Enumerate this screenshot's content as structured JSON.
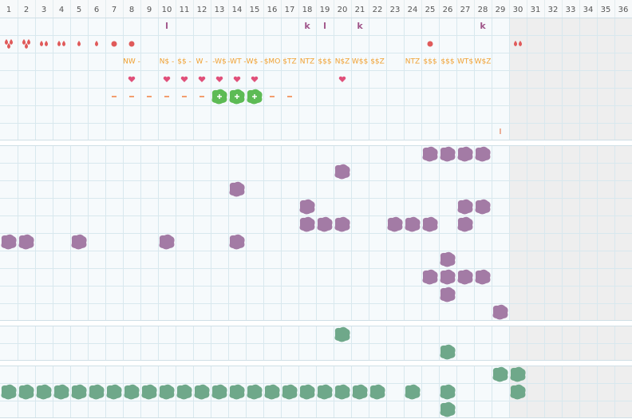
{
  "grid": {
    "columns": [
      1,
      2,
      3,
      4,
      5,
      6,
      7,
      8,
      9,
      10,
      11,
      12,
      13,
      14,
      15,
      16,
      17,
      18,
      19,
      20,
      21,
      22,
      23,
      24,
      25,
      26,
      27,
      28,
      29,
      30,
      31,
      32,
      33,
      34,
      35,
      36
    ],
    "letters": [
      null,
      null,
      null,
      null,
      null,
      null,
      null,
      null,
      null,
      "l",
      null,
      null,
      null,
      null,
      null,
      null,
      null,
      "k",
      "l",
      null,
      "k",
      null,
      null,
      null,
      null,
      null,
      null,
      "k",
      null,
      null,
      null,
      null,
      null,
      null,
      null,
      null
    ],
    "meals": [
      null,
      null,
      null,
      null,
      null,
      null,
      null,
      "NW -",
      null,
      "N$ -",
      "$$ -",
      "W -",
      "-W$",
      "-WT -",
      "W$ -",
      "$MO",
      "$TZ",
      "NTZ",
      "$$$",
      "N$Z",
      "W$$",
      "$$Z",
      null,
      "NTZ",
      "$$$",
      "$$$",
      "WT$",
      "W$Z",
      null,
      null,
      null,
      null,
      null,
      null,
      null,
      null
    ],
    "marks": [
      null,
      null,
      null,
      null,
      null,
      null,
      null,
      null,
      null,
      null,
      null,
      null,
      null,
      null,
      null,
      null,
      null,
      null,
      null,
      null,
      null,
      null,
      null,
      null,
      null,
      null,
      null,
      null,
      "I",
      null,
      null,
      null,
      null,
      null,
      null,
      null
    ]
  }
}
